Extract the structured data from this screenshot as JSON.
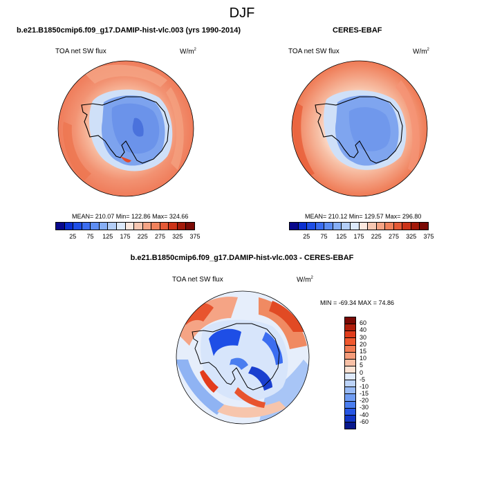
{
  "season": "DJF",
  "panels": [
    {
      "title": "b.e21.B1850cmip6.f09_g17.DAMIP-hist-vlc.003 (yrs 1990-2014)",
      "variable": "TOA net SW flux",
      "units": "W/m",
      "units_sup": "2",
      "stats": "MEAN= 210.07  Min= 122.86  Max= 324.66"
    },
    {
      "title": "CERES-EBAF",
      "variable": "TOA net SW flux",
      "units": "W/m",
      "units_sup": "2",
      "stats": "MEAN= 210.12  Min= 129.57  Max= 296.80"
    },
    {
      "title": "b.e21.B1850cmip6.f09_g17.DAMIP-hist-vlc.003 - CERES-EBAF",
      "variable": "TOA net SW flux",
      "units": "W/m",
      "units_sup": "2",
      "stats": "MIN = -69.34  MAX =  74.86"
    }
  ],
  "colorbar_abs": {
    "labels": [
      "25",
      "75",
      "125",
      "175",
      "225",
      "275",
      "325",
      "375"
    ],
    "colors": [
      "#08088c",
      "#0a2fd0",
      "#1e4ee6",
      "#3b6df0",
      "#5d8df2",
      "#86aef5",
      "#b3cef8",
      "#dce9fb",
      "#fbe8df",
      "#f7c7b2",
      "#f5a485",
      "#f0825c",
      "#e55a36",
      "#cc3318",
      "#a31a0a",
      "#7a0a05"
    ]
  },
  "colorbar_diff": {
    "labels": [
      "60",
      "40",
      "30",
      "20",
      "15",
      "10",
      "5",
      "0",
      "-5",
      "-10",
      "-15",
      "-20",
      "-30",
      "-40",
      "-60"
    ],
    "colors": [
      "#7a0a05",
      "#b01e0c",
      "#e03c1c",
      "#f0582e",
      "#f27a52",
      "#f59c7a",
      "#f8c0a6",
      "#fce3d4",
      "#dfeafb",
      "#bcd3f8",
      "#98baf5",
      "#6f9cf2",
      "#4a7def",
      "#2756e4",
      "#1236c6",
      "#08188c"
    ]
  }
}
